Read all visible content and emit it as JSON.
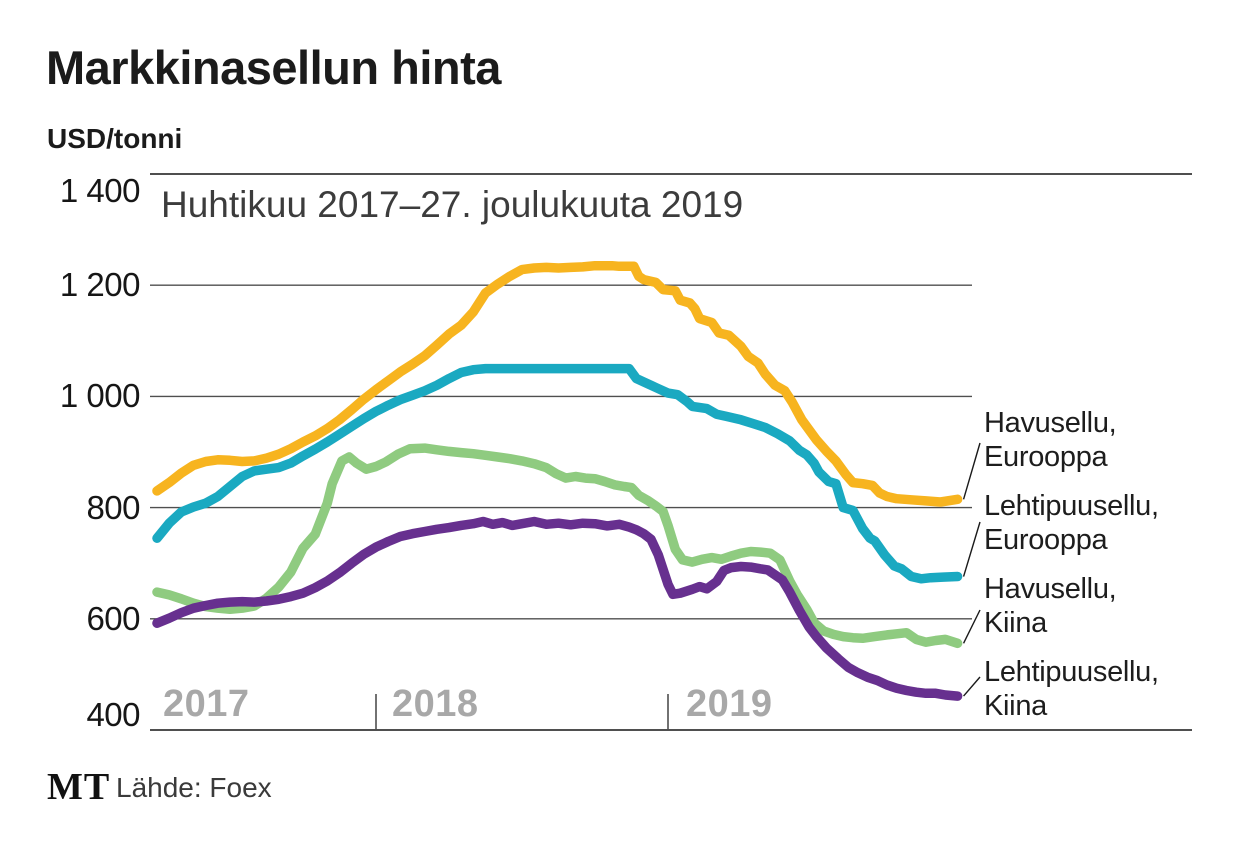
{
  "header": {
    "title": "Markkinasellun hinta",
    "units": "USD/tonni"
  },
  "footer": {
    "logo": "MT",
    "source": "Lähde: Foex"
  },
  "chart_data": {
    "type": "line",
    "title": "Markkinasellun hinta",
    "subtitle": "Huhtikuu 2017–27. joulukuuta 2019",
    "ylabel": "USD/tonni",
    "ylim": [
      400,
      1400
    ],
    "grid": true,
    "legend_position": "right",
    "grid_color": "#4f4f4f",
    "x_tick_color": "#a8a8a8",
    "x_unit": "months, 0 = huhtikuu 2017, 32.9 = 27. joulukuuta 2019",
    "y_ticks": [
      {
        "value": 1400,
        "label": "1 400"
      },
      {
        "value": 1200,
        "label": "1 200"
      },
      {
        "value": 1000,
        "label": "1 000"
      },
      {
        "value": 800,
        "label": "800"
      },
      {
        "value": 600,
        "label": "600"
      },
      {
        "value": 400,
        "label": "400"
      }
    ],
    "x_ticks": [
      {
        "label": "2017",
        "month_index": 0,
        "tick": false
      },
      {
        "label": "2018",
        "month_index": 9,
        "tick": true
      },
      {
        "label": "2019",
        "month_index": 21,
        "tick": true
      }
    ],
    "series": [
      {
        "name": "Havusellu, Eurooppa",
        "label_lines": [
          "Havusellu,",
          "Eurooppa"
        ],
        "color": "#F7B41F",
        "points": [
          [
            0,
            830
          ],
          [
            0.5,
            845
          ],
          [
            1,
            862
          ],
          [
            1.5,
            876
          ],
          [
            2,
            883
          ],
          [
            2.5,
            886
          ],
          [
            3,
            885
          ],
          [
            3.5,
            883
          ],
          [
            4,
            884
          ],
          [
            4.5,
            889
          ],
          [
            5,
            896
          ],
          [
            5.5,
            906
          ],
          [
            6,
            918
          ],
          [
            6.5,
            929
          ],
          [
            7,
            942
          ],
          [
            7.5,
            958
          ],
          [
            8,
            976
          ],
          [
            8.5,
            995
          ],
          [
            9,
            1012
          ],
          [
            9.5,
            1028
          ],
          [
            10,
            1044
          ],
          [
            10.5,
            1058
          ],
          [
            11,
            1073
          ],
          [
            11.5,
            1092
          ],
          [
            12,
            1112
          ],
          [
            12.5,
            1128
          ],
          [
            13,
            1152
          ],
          [
            13.5,
            1186
          ],
          [
            14,
            1202
          ],
          [
            14.5,
            1216
          ],
          [
            15,
            1228
          ],
          [
            15.5,
            1231
          ],
          [
            16,
            1232
          ],
          [
            16.5,
            1231
          ],
          [
            17,
            1232
          ],
          [
            17.5,
            1233
          ],
          [
            18,
            1235
          ],
          [
            18.7,
            1235
          ],
          [
            19,
            1234
          ],
          [
            19.6,
            1234
          ],
          [
            19.8,
            1216
          ],
          [
            20,
            1210
          ],
          [
            20.5,
            1205
          ],
          [
            20.8,
            1192
          ],
          [
            21.3,
            1190
          ],
          [
            21.5,
            1173
          ],
          [
            21.9,
            1168
          ],
          [
            22.1,
            1158
          ],
          [
            22.3,
            1140
          ],
          [
            22.8,
            1133
          ],
          [
            23.1,
            1114
          ],
          [
            23.5,
            1110
          ],
          [
            23.8,
            1098
          ],
          [
            24,
            1090
          ],
          [
            24.3,
            1072
          ],
          [
            24.7,
            1060
          ],
          [
            25,
            1040
          ],
          [
            25.4,
            1020
          ],
          [
            25.8,
            1010
          ],
          [
            26.1,
            990
          ],
          [
            26.5,
            958
          ],
          [
            26.8,
            940
          ],
          [
            27.1,
            922
          ],
          [
            27.5,
            902
          ],
          [
            27.9,
            884
          ],
          [
            28.3,
            860
          ],
          [
            28.6,
            845
          ],
          [
            29,
            843
          ],
          [
            29.4,
            840
          ],
          [
            29.7,
            826
          ],
          [
            30,
            820
          ],
          [
            30.4,
            816
          ],
          [
            31,
            814
          ],
          [
            31.6,
            812
          ],
          [
            32.2,
            810
          ],
          [
            32.9,
            815
          ]
        ]
      },
      {
        "name": "Lehtipuusellu, Eurooppa",
        "label_lines": [
          "Lehtipuusellu,",
          "Eurooppa"
        ],
        "color": "#1AA9C1",
        "points": [
          [
            0,
            745
          ],
          [
            0.5,
            772
          ],
          [
            1,
            792
          ],
          [
            1.5,
            801
          ],
          [
            2,
            808
          ],
          [
            2.5,
            820
          ],
          [
            3,
            838
          ],
          [
            3.5,
            856
          ],
          [
            4,
            866
          ],
          [
            4.5,
            869
          ],
          [
            5,
            872
          ],
          [
            5.5,
            880
          ],
          [
            6,
            893
          ],
          [
            6.5,
            905
          ],
          [
            7,
            918
          ],
          [
            7.5,
            932
          ],
          [
            8,
            946
          ],
          [
            8.5,
            960
          ],
          [
            9,
            973
          ],
          [
            9.5,
            984
          ],
          [
            10,
            994
          ],
          [
            10.5,
            1002
          ],
          [
            11,
            1010
          ],
          [
            11.5,
            1020
          ],
          [
            12,
            1032
          ],
          [
            12.5,
            1043
          ],
          [
            13,
            1048
          ],
          [
            13.5,
            1050
          ],
          [
            14,
            1050
          ],
          [
            15,
            1050
          ],
          [
            16,
            1050
          ],
          [
            17,
            1050
          ],
          [
            18,
            1050
          ],
          [
            19,
            1050
          ],
          [
            19.4,
            1050
          ],
          [
            19.7,
            1032
          ],
          [
            20,
            1026
          ],
          [
            20.5,
            1016
          ],
          [
            21,
            1006
          ],
          [
            21.4,
            1003
          ],
          [
            21.8,
            990
          ],
          [
            22,
            982
          ],
          [
            22.6,
            978
          ],
          [
            23,
            968
          ],
          [
            23.4,
            964
          ],
          [
            23.8,
            960
          ],
          [
            24,
            958
          ],
          [
            24.5,
            951
          ],
          [
            25,
            944
          ],
          [
            25.5,
            933
          ],
          [
            26,
            920
          ],
          [
            26.4,
            903
          ],
          [
            26.7,
            895
          ],
          [
            27,
            880
          ],
          [
            27.2,
            864
          ],
          [
            27.6,
            847
          ],
          [
            27.9,
            843
          ],
          [
            28.2,
            800
          ],
          [
            28.6,
            795
          ],
          [
            29,
            762
          ],
          [
            29.3,
            745
          ],
          [
            29.5,
            740
          ],
          [
            29.9,
            715
          ],
          [
            30.3,
            695
          ],
          [
            30.6,
            690
          ],
          [
            31,
            676
          ],
          [
            31.4,
            672
          ],
          [
            31.8,
            674
          ],
          [
            32.3,
            675
          ],
          [
            32.9,
            676
          ]
        ]
      },
      {
        "name": "Havusellu, Kiina",
        "label_lines": [
          "Havusellu,",
          "Kiina"
        ],
        "color": "#8FCB80",
        "points": [
          [
            0,
            648
          ],
          [
            0.5,
            643
          ],
          [
            1,
            636
          ],
          [
            1.5,
            628
          ],
          [
            2,
            622
          ],
          [
            2.5,
            619
          ],
          [
            3,
            617
          ],
          [
            3.5,
            619
          ],
          [
            4,
            623
          ],
          [
            4.5,
            637
          ],
          [
            5,
            657
          ],
          [
            5.5,
            684
          ],
          [
            6,
            727
          ],
          [
            6.2,
            737
          ],
          [
            6.5,
            752
          ],
          [
            7,
            808
          ],
          [
            7.2,
            843
          ],
          [
            7.6,
            884
          ],
          [
            7.9,
            891
          ],
          [
            8.2,
            880
          ],
          [
            8.6,
            869
          ],
          [
            9,
            874
          ],
          [
            9.4,
            882
          ],
          [
            9.9,
            896
          ],
          [
            10.4,
            906
          ],
          [
            11,
            907
          ],
          [
            11.5,
            904
          ],
          [
            12,
            901
          ],
          [
            12.5,
            899
          ],
          [
            13,
            897
          ],
          [
            13.5,
            894
          ],
          [
            14,
            891
          ],
          [
            14.5,
            888
          ],
          [
            15,
            884
          ],
          [
            15.5,
            879
          ],
          [
            16,
            872
          ],
          [
            16.4,
            861
          ],
          [
            16.8,
            853
          ],
          [
            17.2,
            856
          ],
          [
            17.6,
            853
          ],
          [
            18,
            852
          ],
          [
            18.4,
            847
          ],
          [
            18.8,
            841
          ],
          [
            19.2,
            838
          ],
          [
            19.5,
            836
          ],
          [
            19.8,
            822
          ],
          [
            20.2,
            812
          ],
          [
            20.5,
            803
          ],
          [
            20.8,
            793
          ],
          [
            21,
            768
          ],
          [
            21.3,
            725
          ],
          [
            21.6,
            706
          ],
          [
            22,
            702
          ],
          [
            22.4,
            707
          ],
          [
            22.8,
            710
          ],
          [
            23.2,
            707
          ],
          [
            23.6,
            713
          ],
          [
            24,
            718
          ],
          [
            24.4,
            721
          ],
          [
            24.8,
            720
          ],
          [
            25.2,
            718
          ],
          [
            25.6,
            706
          ],
          [
            26,
            668
          ],
          [
            26.3,
            644
          ],
          [
            26.7,
            617
          ],
          [
            27,
            593
          ],
          [
            27.4,
            578
          ],
          [
            27.8,
            572
          ],
          [
            28.2,
            568
          ],
          [
            28.6,
            566
          ],
          [
            29,
            565
          ],
          [
            29.5,
            568
          ],
          [
            30,
            571
          ],
          [
            30.4,
            573
          ],
          [
            30.8,
            575
          ],
          [
            31.2,
            563
          ],
          [
            31.6,
            558
          ],
          [
            32,
            561
          ],
          [
            32.4,
            563
          ],
          [
            32.9,
            556
          ]
        ]
      },
      {
        "name": "Lehtipuusellu, Kiina",
        "label_lines": [
          "Lehtipuusellu,",
          "Kiina"
        ],
        "color": "#67308F",
        "points": [
          [
            0,
            592
          ],
          [
            0.5,
            601
          ],
          [
            1,
            611
          ],
          [
            1.5,
            619
          ],
          [
            2,
            624
          ],
          [
            2.5,
            628
          ],
          [
            3,
            630
          ],
          [
            3.5,
            631
          ],
          [
            4,
            630
          ],
          [
            4.5,
            632
          ],
          [
            5,
            635
          ],
          [
            5.5,
            640
          ],
          [
            6,
            646
          ],
          [
            6.5,
            656
          ],
          [
            7,
            668
          ],
          [
            7.5,
            683
          ],
          [
            8,
            700
          ],
          [
            8.5,
            716
          ],
          [
            9,
            729
          ],
          [
            9.5,
            739
          ],
          [
            10,
            748
          ],
          [
            10.5,
            753
          ],
          [
            11,
            757
          ],
          [
            11.5,
            761
          ],
          [
            12,
            764
          ],
          [
            12.5,
            768
          ],
          [
            13,
            771
          ],
          [
            13.4,
            775
          ],
          [
            13.8,
            770
          ],
          [
            14.2,
            773
          ],
          [
            14.6,
            768
          ],
          [
            15,
            771
          ],
          [
            15.5,
            775
          ],
          [
            16,
            770
          ],
          [
            16.5,
            772
          ],
          [
            17,
            769
          ],
          [
            17.5,
            772
          ],
          [
            18,
            771
          ],
          [
            18.5,
            767
          ],
          [
            19,
            770
          ],
          [
            19.4,
            765
          ],
          [
            19.7,
            760
          ],
          [
            20,
            753
          ],
          [
            20.3,
            743
          ],
          [
            20.6,
            715
          ],
          [
            21,
            662
          ],
          [
            21.2,
            644
          ],
          [
            21.5,
            646
          ],
          [
            22,
            653
          ],
          [
            22.3,
            658
          ],
          [
            22.6,
            654
          ],
          [
            23,
            667
          ],
          [
            23.3,
            687
          ],
          [
            23.6,
            692
          ],
          [
            24,
            694
          ],
          [
            24.4,
            693
          ],
          [
            24.8,
            690
          ],
          [
            25.1,
            688
          ],
          [
            25.4,
            679
          ],
          [
            25.7,
            670
          ],
          [
            26,
            648
          ],
          [
            26.4,
            615
          ],
          [
            26.8,
            585
          ],
          [
            27.1,
            568
          ],
          [
            27.5,
            548
          ],
          [
            28,
            528
          ],
          [
            28.4,
            513
          ],
          [
            28.8,
            503
          ],
          [
            29.2,
            495
          ],
          [
            29.6,
            489
          ],
          [
            30,
            481
          ],
          [
            30.4,
            475
          ],
          [
            30.8,
            471
          ],
          [
            31.2,
            468
          ],
          [
            31.6,
            466
          ],
          [
            32,
            466
          ],
          [
            32.4,
            463
          ],
          [
            32.9,
            461
          ]
        ]
      }
    ]
  }
}
